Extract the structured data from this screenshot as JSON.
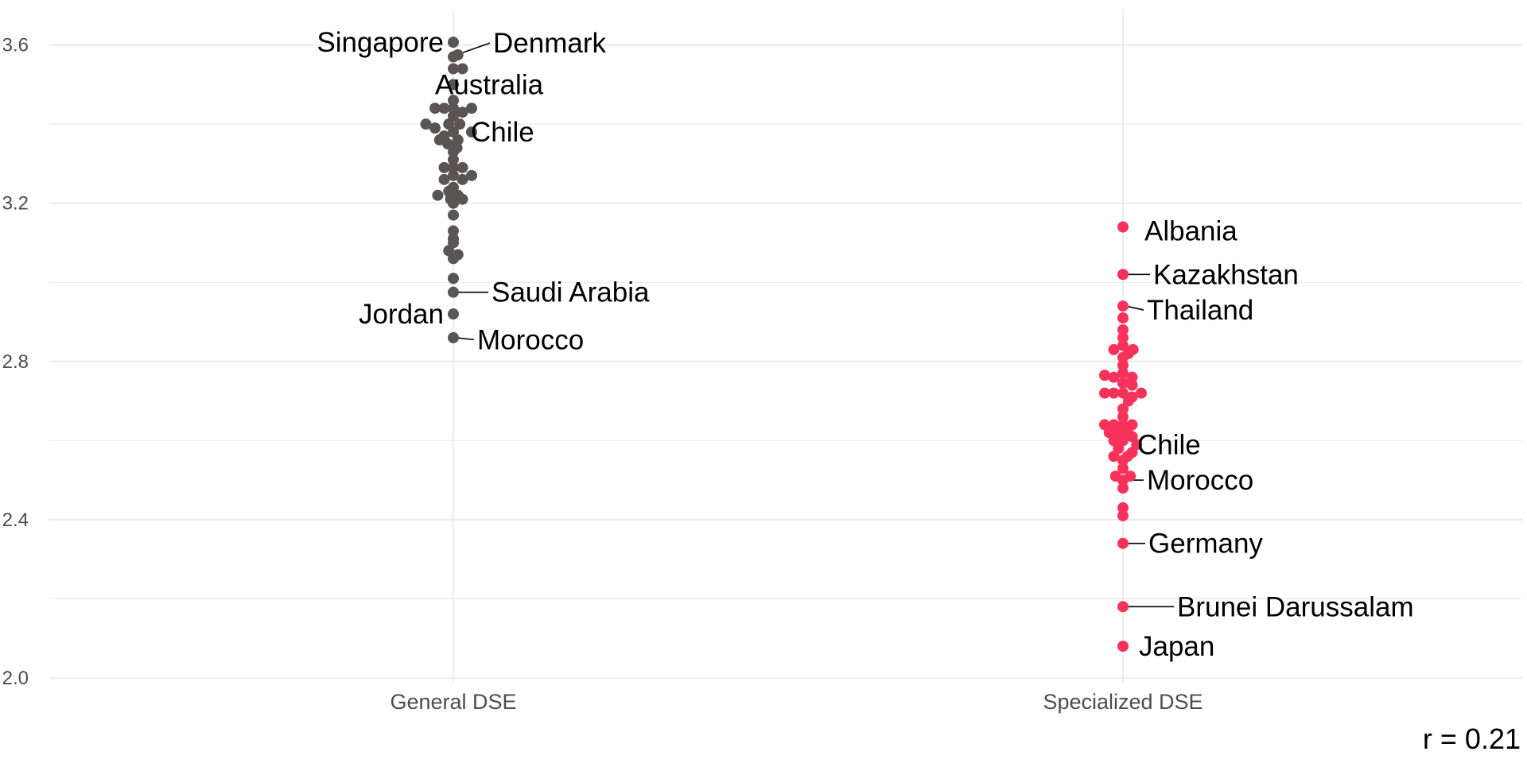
{
  "chart_data": {
    "type": "scatter",
    "subtype": "beeswarm",
    "title": "",
    "xlabel": "",
    "ylabel": "",
    "ylim": [
      2.0,
      3.65
    ],
    "y_ticks": [
      "2.0",
      "2.4",
      "2.8",
      "3.2",
      "3.6"
    ],
    "y_tick_values": [
      2.0,
      2.4,
      2.8,
      3.2,
      3.6
    ],
    "y_minor_gridlines": [
      2.2,
      2.6,
      3.0,
      3.4
    ],
    "grid": true,
    "legend": "none",
    "categories": [
      "General DSE",
      "Specialized DSE"
    ],
    "annotation": "r = 0.21",
    "series": [
      {
        "name": "General DSE",
        "color": "#5a5454",
        "points": [
          {
            "y": 3.607,
            "swarm": 0
          },
          {
            "y": 3.575,
            "swarm": 0.5
          },
          {
            "y": 3.57,
            "swarm": 0
          },
          {
            "y": 3.54,
            "swarm": 0
          },
          {
            "y": 3.54,
            "swarm": 1
          },
          {
            "y": 3.5,
            "swarm": 0
          },
          {
            "y": 3.46,
            "swarm": 0
          },
          {
            "y": 3.44,
            "swarm": -2
          },
          {
            "y": 3.44,
            "swarm": -1
          },
          {
            "y": 3.44,
            "swarm": 0
          },
          {
            "y": 3.43,
            "swarm": 1
          },
          {
            "y": 3.44,
            "swarm": 2
          },
          {
            "y": 3.42,
            "swarm": 0
          },
          {
            "y": 3.4,
            "swarm": 0.7
          },
          {
            "y": 3.4,
            "swarm": -0.5
          },
          {
            "y": 3.4,
            "swarm": -3
          },
          {
            "y": 3.39,
            "swarm": -2
          },
          {
            "y": 3.38,
            "swarm": 0
          },
          {
            "y": 3.38,
            "swarm": 2
          },
          {
            "y": 3.37,
            "swarm": -1
          },
          {
            "y": 3.36,
            "swarm": 0.5
          },
          {
            "y": 3.36,
            "swarm": -1.5
          },
          {
            "y": 3.35,
            "swarm": -0.6
          },
          {
            "y": 3.34,
            "swarm": 0.4
          },
          {
            "y": 3.33,
            "swarm": 0
          },
          {
            "y": 3.31,
            "swarm": 0
          },
          {
            "y": 3.29,
            "swarm": 0
          },
          {
            "y": 3.29,
            "swarm": -1
          },
          {
            "y": 3.29,
            "swarm": 1
          },
          {
            "y": 3.27,
            "swarm": 0
          },
          {
            "y": 3.26,
            "swarm": -1
          },
          {
            "y": 3.26,
            "swarm": 1
          },
          {
            "y": 3.27,
            "swarm": 2
          },
          {
            "y": 3.24,
            "swarm": 0
          },
          {
            "y": 3.23,
            "swarm": -0.5
          },
          {
            "y": 3.22,
            "swarm": 0.5
          },
          {
            "y": 3.22,
            "swarm": -1.7
          },
          {
            "y": 3.21,
            "swarm": -0.3
          },
          {
            "y": 3.21,
            "swarm": 1
          },
          {
            "y": 3.2,
            "swarm": 0
          },
          {
            "y": 3.17,
            "swarm": 0
          },
          {
            "y": 3.13,
            "swarm": 0
          },
          {
            "y": 3.11,
            "swarm": 0
          },
          {
            "y": 3.1,
            "swarm": 0
          },
          {
            "y": 3.08,
            "swarm": -0.5
          },
          {
            "y": 3.07,
            "swarm": 0.5
          },
          {
            "y": 3.06,
            "swarm": 0
          },
          {
            "y": 3.01,
            "swarm": 0
          },
          {
            "y": 2.975,
            "swarm": 0
          },
          {
            "y": 2.92,
            "swarm": 0
          },
          {
            "y": 2.86,
            "swarm": 0
          }
        ],
        "labels": [
          {
            "text": "Singapore",
            "y": 3.607,
            "side": "left",
            "dy": 0.0,
            "leader": false
          },
          {
            "text": "Denmark",
            "y": 3.575,
            "side": "right",
            "dy": 0.03,
            "leader": true
          },
          {
            "text": "Australia",
            "y": 3.5,
            "side": "center",
            "dy": 0.0,
            "leader": false
          },
          {
            "text": "Chile",
            "y": 3.38,
            "side": "right",
            "dy": 0.0,
            "leader": false
          },
          {
            "text": "Saudi Arabia",
            "y": 2.975,
            "side": "right",
            "dy": 0.0,
            "leader": true
          },
          {
            "text": "Jordan",
            "y": 2.92,
            "side": "left",
            "dy": 0.0,
            "leader": false
          },
          {
            "text": "Morocco",
            "y": 2.86,
            "side": "right",
            "dy": -0.005,
            "leader": true
          }
        ]
      },
      {
        "name": "Specialized DSE",
        "color": "#f7325a",
        "points": [
          {
            "y": 3.14,
            "swarm": 0
          },
          {
            "y": 3.02,
            "swarm": 0
          },
          {
            "y": 2.94,
            "swarm": 0
          },
          {
            "y": 2.91,
            "swarm": 0
          },
          {
            "y": 2.88,
            "swarm": 0
          },
          {
            "y": 2.86,
            "swarm": 0
          },
          {
            "y": 2.84,
            "swarm": 0
          },
          {
            "y": 2.83,
            "swarm": -1
          },
          {
            "y": 2.83,
            "swarm": 1.1
          },
          {
            "y": 2.82,
            "swarm": 0.6
          },
          {
            "y": 2.81,
            "swarm": 0
          },
          {
            "y": 2.79,
            "swarm": 0
          },
          {
            "y": 2.77,
            "swarm": 0
          },
          {
            "y": 2.765,
            "swarm": -2
          },
          {
            "y": 2.76,
            "swarm": -1
          },
          {
            "y": 2.76,
            "swarm": 1
          },
          {
            "y": 2.745,
            "swarm": 0
          },
          {
            "y": 2.74,
            "swarm": 1
          },
          {
            "y": 2.72,
            "swarm": -2
          },
          {
            "y": 2.72,
            "swarm": -1
          },
          {
            "y": 2.72,
            "swarm": 0
          },
          {
            "y": 2.72,
            "swarm": 2
          },
          {
            "y": 2.71,
            "swarm": 1
          },
          {
            "y": 2.7,
            "swarm": 0.6
          },
          {
            "y": 2.68,
            "swarm": 0
          },
          {
            "y": 2.66,
            "swarm": 0
          },
          {
            "y": 2.64,
            "swarm": -2
          },
          {
            "y": 2.64,
            "swarm": -1
          },
          {
            "y": 2.64,
            "swarm": 0
          },
          {
            "y": 2.64,
            "swarm": 1
          },
          {
            "y": 2.62,
            "swarm": -1.5
          },
          {
            "y": 2.62,
            "swarm": -0.5
          },
          {
            "y": 2.62,
            "swarm": 0.5
          },
          {
            "y": 2.61,
            "swarm": 1
          },
          {
            "y": 2.6,
            "swarm": -1
          },
          {
            "y": 2.6,
            "swarm": 0
          },
          {
            "y": 2.59,
            "swarm": 1.5
          },
          {
            "y": 2.58,
            "swarm": -0.5
          },
          {
            "y": 2.57,
            "swarm": 1
          },
          {
            "y": 2.56,
            "swarm": -1
          },
          {
            "y": 2.56,
            "swarm": 0.5
          },
          {
            "y": 2.55,
            "swarm": 0
          },
          {
            "y": 2.53,
            "swarm": 0
          },
          {
            "y": 2.51,
            "swarm": -0.8
          },
          {
            "y": 2.51,
            "swarm": 0.8
          },
          {
            "y": 2.5,
            "swarm": 0
          },
          {
            "y": 2.48,
            "swarm": 0
          },
          {
            "y": 2.43,
            "swarm": 0
          },
          {
            "y": 2.41,
            "swarm": 0
          },
          {
            "y": 2.34,
            "swarm": 0
          },
          {
            "y": 2.18,
            "swarm": 0
          },
          {
            "y": 2.08,
            "swarm": 0
          }
        ],
        "labels": [
          {
            "text": "Albania",
            "y": 3.14,
            "side": "right",
            "dy": -0.01,
            "leader": false
          },
          {
            "text": "Kazakhstan",
            "y": 3.02,
            "side": "right",
            "dy": 0.0,
            "leader": true
          },
          {
            "text": "Thailand",
            "y": 2.94,
            "side": "right",
            "dy": -0.01,
            "leader": true
          },
          {
            "text": "Chile",
            "y": 2.59,
            "side": "right",
            "dy": 0.0,
            "leader": false
          },
          {
            "text": "Morocco",
            "y": 2.5,
            "side": "right",
            "dy": 0.0,
            "leader": true
          },
          {
            "text": "Germany",
            "y": 2.34,
            "side": "right",
            "dy": 0.0,
            "leader": true
          },
          {
            "text": "Brunei Darussalam",
            "y": 2.18,
            "side": "right",
            "dy": 0.0,
            "leader": true
          },
          {
            "text": "Japan",
            "y": 2.08,
            "side": "right",
            "dy": 0.0,
            "leader": false
          }
        ]
      }
    ]
  }
}
